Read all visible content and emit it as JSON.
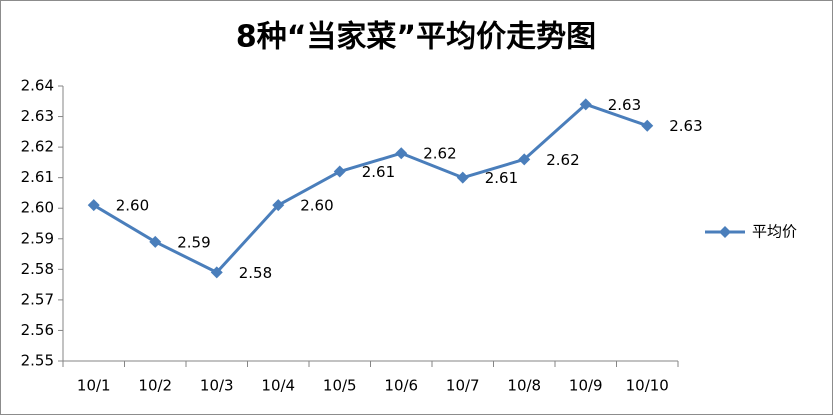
{
  "chart_data": {
    "type": "line",
    "title": "8种“当家菜”平均价走势图",
    "categories": [
      "10/1",
      "10/2",
      "10/3",
      "10/4",
      "10/5",
      "10/6",
      "10/7",
      "10/8",
      "10/9",
      "10/10"
    ],
    "series": [
      {
        "name": "平均价",
        "color": "#4a7ebb",
        "values": [
          2.601,
          2.589,
          2.579,
          2.601,
          2.612,
          2.618,
          2.61,
          2.616,
          2.634,
          2.627
        ],
        "value_labels": [
          "2.60",
          "2.59",
          "2.58",
          "2.60",
          "2.61",
          "2.62",
          "2.61",
          "2.62",
          "2.63",
          "2.63"
        ]
      }
    ],
    "ylim": [
      2.55,
      2.64
    ],
    "yticks": [
      2.55,
      2.56,
      2.57,
      2.58,
      2.59,
      {
        "value": 2.6,
        "label": "2.60"
      },
      2.61,
      2.62,
      2.63,
      2.64
    ],
    "legend": "right"
  }
}
